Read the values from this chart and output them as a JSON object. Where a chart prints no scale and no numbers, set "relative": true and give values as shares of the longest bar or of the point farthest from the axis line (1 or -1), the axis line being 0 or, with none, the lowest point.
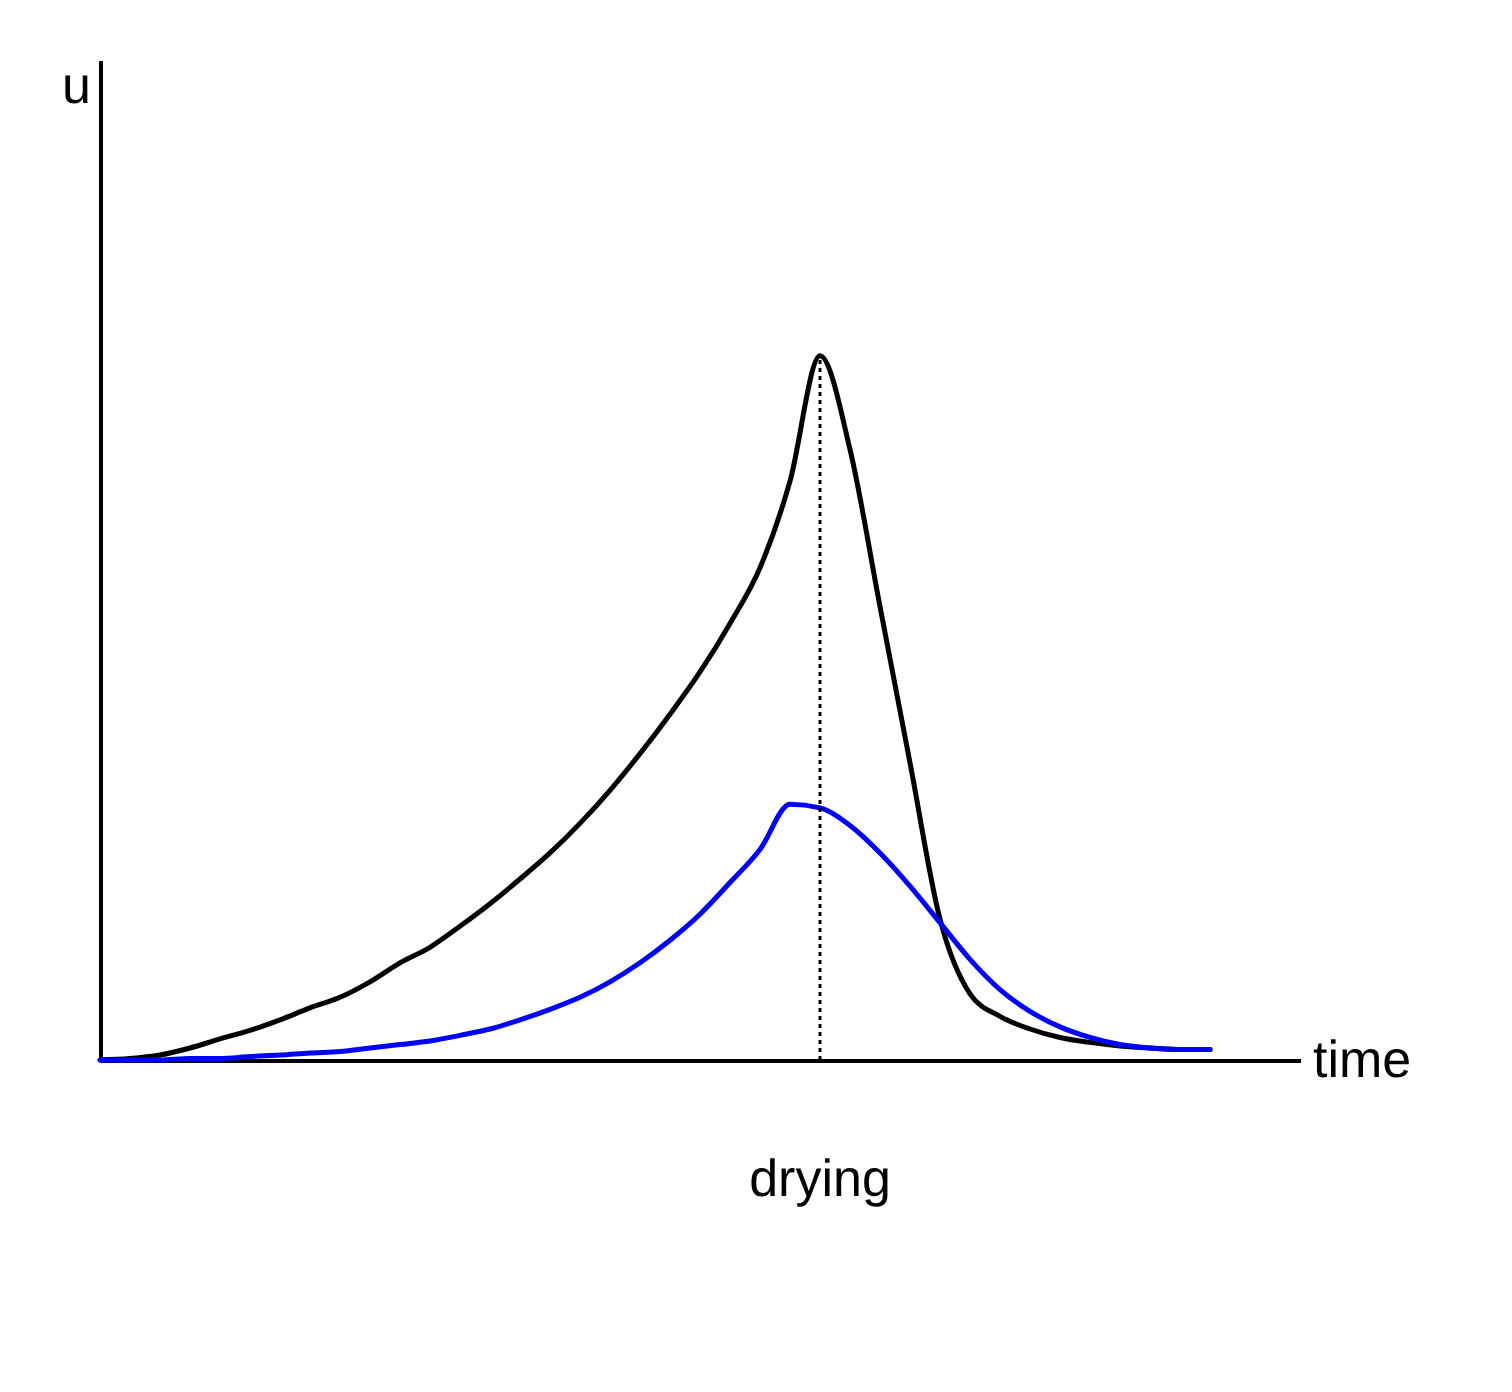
{
  "chart_data": {
    "type": "line",
    "relative": true,
    "xlabel": "time",
    "ylabel": "u",
    "marker": "none",
    "categories": [
      null,
      null,
      null,
      null,
      null,
      null,
      null,
      null,
      null,
      null,
      null,
      null,
      null,
      null,
      null,
      null,
      null,
      null,
      null,
      null,
      null,
      null,
      null,
      null,
      null,
      null,
      null,
      null,
      null,
      null,
      null,
      null,
      null,
      null,
      null,
      null,
      null,
      null
    ],
    "series": [
      {
        "color": "#000000",
        "values": [
          0,
          0.002,
          0.007,
          0.017,
          0.03,
          0.042,
          0.057,
          0.074,
          0.089,
          0.111,
          0.138,
          0.16,
          0.19,
          0.222,
          0.257,
          0.294,
          0.336,
          0.383,
          0.435,
          0.491,
          0.551,
          0.62,
          0.699,
          0.822,
          1,
          0.867,
          0.644,
          0.422,
          0.2,
          0.094,
          0.062,
          0.044,
          0.032,
          0.025,
          0.02,
          0.017,
          0.015,
          0.015
        ]
      },
      {
        "color": "#0000ff",
        "values": [
          0,
          0,
          0,
          0.002,
          0.002,
          0.005,
          0.007,
          0.01,
          0.012,
          0.017,
          0.022,
          0.027,
          0.035,
          0.044,
          0.057,
          0.072,
          0.089,
          0.111,
          0.138,
          0.17,
          0.207,
          0.252,
          0.299,
          0.363,
          0.358,
          0.333,
          0.294,
          0.247,
          0.195,
          0.143,
          0.1,
          0.069,
          0.047,
          0.032,
          0.022,
          0.017,
          0.015,
          0.015
        ]
      }
    ],
    "ref_lines": [
      {
        "axis": "x",
        "label": "drying",
        "line_style": "dotted",
        "color": "#000000"
      }
    ]
  }
}
